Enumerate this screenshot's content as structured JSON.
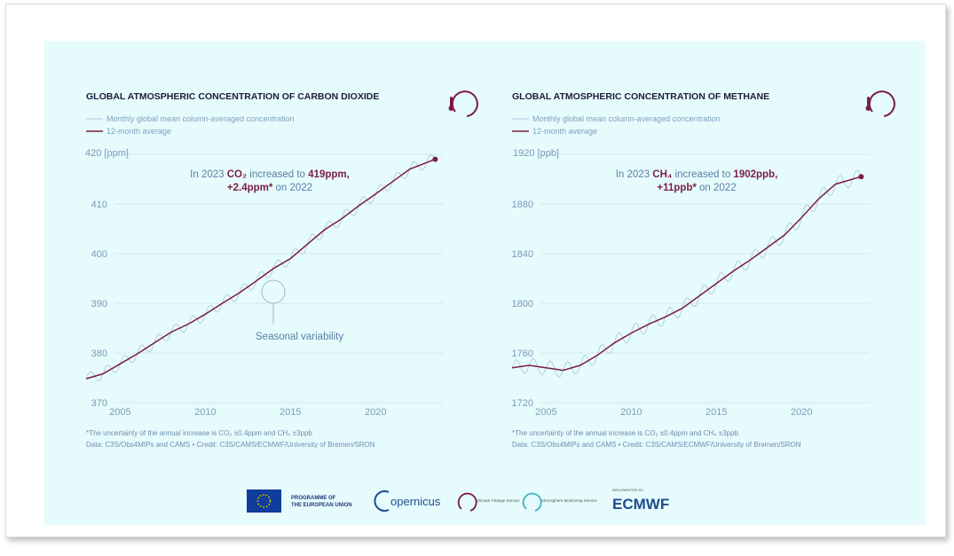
{
  "chart_data": [
    {
      "type": "line",
      "title": "GLOBAL ATMOSPHERIC CONCENTRATION OF CARBON DIOXIDE",
      "legend": [
        "Monthly global mean column-averaged concentration",
        "12-month average"
      ],
      "y_unit_label": "420 [ppm]",
      "ylim": [
        370,
        420
      ],
      "y_ticks": [
        370,
        380,
        390,
        400,
        410
      ],
      "xlim": [
        2003,
        2024
      ],
      "x_ticks": [
        2005,
        2010,
        2015,
        2020
      ],
      "annotation_prefix": "In 2023 ",
      "annotation_gas": "CO₂",
      "annotation_mid": " increased to ",
      "annotation_value": "419ppm,",
      "annotation_delta": "+2.4ppm*",
      "annotation_suffix": " on 2022",
      "callout": "Seasonal variability",
      "series": [
        {
          "name": "12-month average",
          "x": [
            2003,
            2004,
            2005,
            2006,
            2007,
            2008,
            2009,
            2010,
            2011,
            2012,
            2013,
            2014,
            2015,
            2016,
            2017,
            2018,
            2019,
            2020,
            2021,
            2022,
            2023.5
          ],
          "values": [
            374.8,
            375.8,
            377.8,
            379.8,
            382.0,
            384.2,
            385.8,
            387.8,
            390.0,
            392.1,
            394.5,
            397.0,
            399.0,
            401.9,
            404.8,
            407.0,
            409.6,
            412.0,
            414.5,
            417.0,
            419.0
          ]
        }
      ],
      "seasonal_amplitude": 1.2
    },
    {
      "type": "line",
      "title": "GLOBAL ATMOSPHERIC CONCENTRATION OF METHANE",
      "legend": [
        "Monthly global mean column-averaged concentration",
        "12-month average"
      ],
      "y_unit_label": "1920 [ppb]",
      "ylim": [
        1720,
        1920
      ],
      "y_ticks": [
        1720,
        1760,
        1800,
        1840,
        1880
      ],
      "xlim": [
        2003,
        2024
      ],
      "x_ticks": [
        2005,
        2010,
        2015,
        2020
      ],
      "annotation_prefix": "In 2023 ",
      "annotation_gas": "CH₄",
      "annotation_mid": " increased to ",
      "annotation_value": "1902ppb,",
      "annotation_delta": "+11ppb*",
      "annotation_suffix": " on 2022",
      "series": [
        {
          "name": "12-month average",
          "x": [
            2003,
            2004,
            2005,
            2006,
            2007,
            2008,
            2009,
            2010,
            2011,
            2012,
            2013,
            2014,
            2015,
            2016,
            2017,
            2018,
            2019,
            2020,
            2021,
            2022,
            2023.5
          ],
          "values": [
            1748,
            1750,
            1748,
            1746,
            1750,
            1758,
            1768,
            1776,
            1783,
            1789,
            1796,
            1806,
            1816,
            1826,
            1835,
            1845,
            1855,
            1869,
            1884,
            1896,
            1902
          ]
        }
      ],
      "seasonal_amplitude": 6
    }
  ],
  "footnote": "*The uncertainty of the annual increase is CO₂ ±0.4ppm and CH₄ ±3ppb",
  "credit": "Data: C3S/Obs4MIPs and CAMS • Credit: C3S/CAMS/ECMWF/University of Bremen/SRON",
  "logos": {
    "eu_line1": "PROGRAMME OF",
    "eu_line2": "THE EUROPEAN UNION",
    "copernicus": "opernicus",
    "c3s_label": "Climate Change Service",
    "cams_label": "Atmosphere Monitoring Service",
    "ecmwf_top": "IMPLEMENTED BY",
    "ecmwf": "ECMWF"
  },
  "colors": {
    "background": "#e6fbfc",
    "average_line": "#7b1c45",
    "monthly_line": "#b3c8e0",
    "text_blue": "#7a9ab8"
  }
}
